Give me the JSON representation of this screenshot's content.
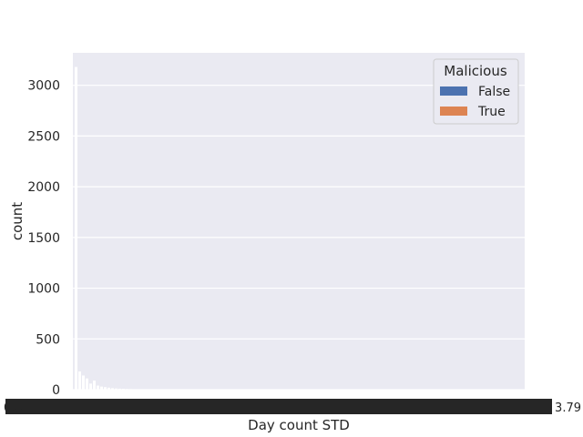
{
  "chart_data": {
    "type": "bar",
    "title": "",
    "xlabel": "Day count STD",
    "ylabel": "count",
    "ylim": [
      0,
      3320
    ],
    "yticks": [
      0,
      500,
      1000,
      1500,
      2000,
      2500,
      3000
    ],
    "ytick_labels": [
      "0",
      "500",
      "1000",
      "1500",
      "2000",
      "2500",
      "3000"
    ],
    "x_tick_labels_visible": [
      "0.0",
      "3.79"
    ],
    "x_tick_note": "x tick labels are densely overlapping and unreadable except fragments at both ends",
    "grid": true,
    "background": "#eaeaf2",
    "legend": {
      "title": "Malicious",
      "placement": "upper-right",
      "entries": [
        {
          "label": "False",
          "color": "#4c72b0"
        },
        {
          "label": "True",
          "color": "#dd8452"
        }
      ]
    },
    "series": [
      {
        "name": "False",
        "color": "#4c72b0",
        "values": [
          3180,
          180,
          140,
          110,
          60,
          90,
          40,
          30,
          25,
          20,
          15,
          12,
          10,
          8,
          6,
          5,
          4,
          3,
          2,
          2,
          1,
          1
        ]
      },
      {
        "name": "True",
        "color": "#dd8452",
        "values": [
          0,
          0,
          0,
          0,
          0,
          0,
          0,
          0,
          0,
          0,
          0,
          0,
          0,
          0,
          0,
          0,
          0,
          0,
          0,
          0,
          0,
          0
        ]
      }
    ]
  }
}
